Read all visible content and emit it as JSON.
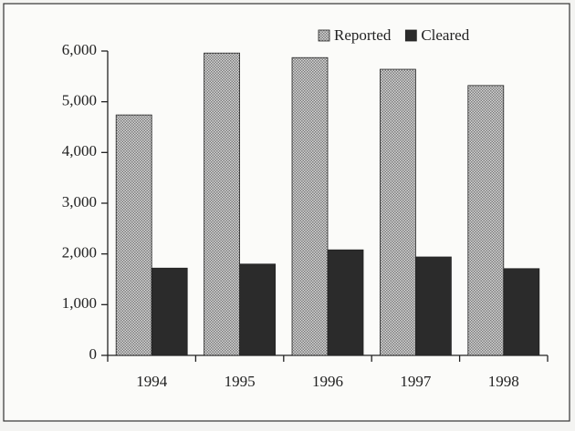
{
  "chart_data": {
    "type": "bar",
    "categories": [
      "1994",
      "1995",
      "1996",
      "1997",
      "1998"
    ],
    "series": [
      {
        "name": "Reported",
        "color": "#7a7a7a",
        "values": [
          4740,
          5960,
          5870,
          5640,
          5320
        ]
      },
      {
        "name": "Cleared",
        "color": "#2b2b2b",
        "values": [
          1720,
          1800,
          2080,
          1940,
          1710
        ]
      }
    ],
    "ylim": [
      0,
      6000
    ],
    "yticks": [
      0,
      {
        "value": 1000,
        "label": "1,000"
      },
      {
        "value": 2000,
        "label": "2,000"
      },
      {
        "value": 3000,
        "label": "3,000"
      },
      {
        "value": 4000,
        "label": "4,000"
      },
      {
        "value": 5000,
        "label": "5,000"
      },
      {
        "value": 6000,
        "label": "6,000"
      }
    ],
    "legend": "upper right",
    "grid": false
  }
}
